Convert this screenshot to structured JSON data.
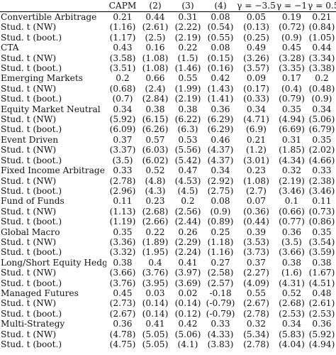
{
  "table": {
    "columns": [
      "CAPM",
      "(2)",
      "(3)",
      "(4)",
      "γ = −3.5",
      "γ = −1",
      "γ = 0.5"
    ],
    "rows": [
      {
        "label": "Convertible Arbitrage",
        "values": [
          "0.21",
          "0.44",
          "0.31",
          "0.08",
          "0.05",
          "0.19",
          "0.21"
        ]
      },
      {
        "label": "Stud. t (NW)",
        "values": [
          "(1.16)",
          "(2.61)",
          "(2.22)",
          "(0.54)",
          "(0.13)",
          "(0.72)",
          "(0.84)"
        ]
      },
      {
        "label": "Stud. t (boot.)",
        "values": [
          "(1.17)",
          "(2.5)",
          "(2.19)",
          "(0.55)",
          "(0.25)",
          "(0.9)",
          "(1.05)"
        ]
      },
      {
        "label": "CTA",
        "values": [
          "0.43",
          "0.16",
          "0.22",
          "0.08",
          "0.49",
          "0.45",
          "0.44"
        ]
      },
      {
        "label": "Stud. t (NW)",
        "values": [
          "(3.58)",
          "(1.08)",
          "(1.5)",
          "(0.15)",
          "(3.26)",
          "(3.28)",
          "(3.34)"
        ]
      },
      {
        "label": "Stud. t (boot.)",
        "values": [
          "(3.51)",
          "(1.08)",
          "(1.46)",
          "(0.16)",
          "(3.57)",
          "(3.35)",
          "(3.38)"
        ]
      },
      {
        "label": "Emerging Markets",
        "values": [
          "0.2",
          "0.66",
          "0.55",
          "0.42",
          "0.09",
          "0.17",
          "0.2"
        ]
      },
      {
        "label": "Stud. t (NW)",
        "values": [
          "(0.68)",
          "(2.4)",
          "(1.99)",
          "(1.43)",
          "(0.17)",
          "(0.4)",
          "(0.48)"
        ]
      },
      {
        "label": "Stud. t (boot.)",
        "values": [
          "(0.7)",
          "(2.84)",
          "(2.19)",
          "(1.41)",
          "(0.33)",
          "(0.79)",
          "(0.9)"
        ]
      },
      {
        "label": "Equity Market Neutral",
        "values": [
          "0.34",
          "0.38",
          "0.38",
          "0.36",
          "0.34",
          "0.35",
          "0.34"
        ]
      },
      {
        "label": "Stud. t (NW)",
        "values": [
          "(5.92)",
          "(6.15)",
          "(6.22)",
          "(6.29)",
          "(4.71)",
          "(4.94)",
          "(5.06)"
        ]
      },
      {
        "label": "Stud. t (boot.)",
        "values": [
          "(6.09)",
          "(6.26)",
          "(6.3)",
          "(6.29)",
          "(6.9)",
          "(6.69)",
          "(6.79)"
        ]
      },
      {
        "label": "Event Driven",
        "values": [
          "0.37",
          "0.57",
          "0.53",
          "0.46",
          "0.21",
          "0.31",
          "0.35"
        ]
      },
      {
        "label": "Stud. t (NW)",
        "values": [
          "(3.37)",
          "(6.03)",
          "(5.56)",
          "(4.37)",
          "(1.2)",
          "(1.85)",
          "(2.02)"
        ]
      },
      {
        "label": "Stud. t (boot.)",
        "values": [
          "(3.5)",
          "(6.02)",
          "(5.42)",
          "(4.37)",
          "(3.01)",
          "(4.34)",
          "(4.66)"
        ]
      },
      {
        "label": "Fixed Income Arbitrage",
        "values": [
          "0.33",
          "0.52",
          "0.47",
          "0.34",
          "0.23",
          "0.32",
          "0.33"
        ]
      },
      {
        "label": "Stud. t (NW)",
        "values": [
          "(2.78)",
          "(4.8)",
          "(4.53)",
          "(2.92)",
          "(1.08)",
          "(2.19)",
          "(2.38)"
        ]
      },
      {
        "label": "Stud. t (boot.)",
        "values": [
          "(2.96)",
          "(4.3)",
          "(4.5)",
          "(2.75)",
          "(2.7)",
          "(3.46)",
          "(3.46)"
        ]
      },
      {
        "label": "Fund of Funds",
        "values": [
          "0.11",
          "0.23",
          "0.2",
          "0.08",
          "0.07",
          "0.1",
          "0.11"
        ]
      },
      {
        "label": "Stud. t (NW)",
        "values": [
          "(1.13)",
          "(2.68)",
          "(2.56)",
          "(0.9)",
          "(0.36)",
          "(0.66)",
          "(0.73)"
        ]
      },
      {
        "label": "Stud. t (boot.)",
        "values": [
          "(1.19)",
          "(2.66)",
          "(2.44)",
          "(0.89)",
          "(0.44)",
          "(0.77)",
          "(0.86)"
        ]
      },
      {
        "label": "Global Macro",
        "values": [
          "0.35",
          "0.22",
          "0.26",
          "0.25",
          "0.39",
          "0.36",
          "0.35"
        ]
      },
      {
        "label": "Stud. t (NW)",
        "values": [
          "(3.36)",
          "(1.89)",
          "(2.29)",
          "(1.18)",
          "(3.53)",
          "(3.5)",
          "(3.54)"
        ]
      },
      {
        "label": "Stud. t (boot.)",
        "values": [
          "(3.32)",
          "(1.95)",
          "(2.24)",
          "(1.16)",
          "(3.73)",
          "(3.66)",
          "(3.59)"
        ]
      },
      {
        "label": "Long/Short Equity Hedge",
        "values": [
          "0.38",
          "0.4",
          "0.41",
          "0.27",
          "0.37",
          "0.38",
          "0.38"
        ]
      },
      {
        "label": "Stud. t (NW)",
        "values": [
          "(3.66)",
          "(3.76)",
          "(3.97)",
          "(2.58)",
          "(2.27)",
          "(1.6)",
          "(1.67)"
        ]
      },
      {
        "label": "Stud. t (boot.)",
        "values": [
          "(3.76)",
          "(3.95)",
          "(3.69)",
          "(2.57)",
          "(4.09)",
          "(4.31)",
          "(4.51)"
        ]
      },
      {
        "label": "Managed Futures",
        "values": [
          "0.45",
          "0.03",
          "0.02",
          "-0.18",
          "0.55",
          "0.52",
          "0.48"
        ]
      },
      {
        "label": "Stud. t (NW)",
        "values": [
          "(2.73)",
          "(0.14)",
          "(0.14)",
          "(-0.79)",
          "(2.67)",
          "(2.68)",
          "(2.61)"
        ]
      },
      {
        "label": "Stud. t (boot.)",
        "values": [
          "(2.67)",
          "(0.14)",
          "(0.12)",
          "(-0.79)",
          "(2.78)",
          "(2.53)",
          "(2.53)"
        ]
      },
      {
        "label": "Multi-Strategy",
        "values": [
          "0.36",
          "0.41",
          "0.42",
          "0.33",
          "0.32",
          "0.34",
          "0.36"
        ]
      },
      {
        "label": "Stud. t (NW)",
        "values": [
          "(4.78)",
          "(5.05)",
          "(5.06)",
          "(4.33)",
          "(5.34)",
          "(5.83)",
          "(5.92)"
        ]
      },
      {
        "label": "Stud. t (boot.)",
        "values": [
          "(4.75)",
          "(5.05)",
          "(4.1)",
          "(3.83)",
          "(2.78)",
          "(4.04)",
          "(4.94)"
        ]
      }
    ]
  }
}
